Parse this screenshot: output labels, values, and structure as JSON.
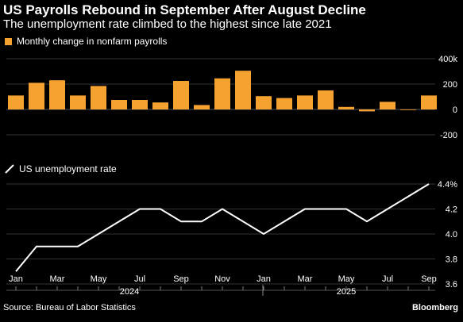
{
  "header": {
    "title": "US Payrolls Rebound in September After August Decline",
    "subtitle": "The unemployment rate climbed to the highest since late 2021"
  },
  "footer": {
    "source": "Source: Bureau of Labor Statistics",
    "brand": "Bloomberg"
  },
  "colors": {
    "bar": "#f5a231",
    "line": "#ffffff",
    "grid": "#333333",
    "background": "#000000"
  },
  "chart_data": [
    {
      "type": "bar",
      "legend": "Monthly change in nonfarm payrolls",
      "categories": [
        "2024-01",
        "2024-02",
        "2024-03",
        "2024-04",
        "2024-05",
        "2024-06",
        "2024-07",
        "2024-08",
        "2024-09",
        "2024-10",
        "2024-11",
        "2024-12",
        "2025-01",
        "2025-02",
        "2025-03",
        "2025-04",
        "2025-05",
        "2025-06",
        "2025-07",
        "2025-08",
        "2025-09"
      ],
      "values": [
        110,
        210,
        230,
        110,
        185,
        75,
        75,
        55,
        225,
        35,
        245,
        305,
        105,
        90,
        110,
        150,
        20,
        -15,
        60,
        -5,
        110
      ],
      "ylim": [
        -200,
        400
      ],
      "yticks": [
        400,
        200,
        0,
        -200
      ],
      "ytick_labels": [
        "400k",
        "200",
        "0",
        "-200"
      ],
      "grid": true
    },
    {
      "type": "line",
      "legend": "US unemployment rate",
      "categories": [
        "2024-01",
        "2024-02",
        "2024-03",
        "2024-04",
        "2024-05",
        "2024-06",
        "2024-07",
        "2024-08",
        "2024-09",
        "2024-10",
        "2024-11",
        "2024-12",
        "2025-01",
        "2025-02",
        "2025-03",
        "2025-04",
        "2025-05",
        "2025-06",
        "2025-07",
        "2025-08",
        "2025-09"
      ],
      "values": [
        3.7,
        3.9,
        3.9,
        3.9,
        4.0,
        4.1,
        4.2,
        4.2,
        4.1,
        4.1,
        4.2,
        4.1,
        4.0,
        4.1,
        4.2,
        4.2,
        4.2,
        4.1,
        4.2,
        4.3,
        4.4
      ],
      "ylim": [
        3.6,
        4.4
      ],
      "yticks": [
        4.4,
        4.2,
        4.0,
        3.8,
        3.6
      ],
      "ytick_labels": [
        "4.4%",
        "4.2",
        "4.0",
        "3.8",
        "3.6"
      ],
      "grid": true
    }
  ],
  "x_axis": {
    "tick_labels": [
      "Jan",
      "Mar",
      "May",
      "Jul",
      "Sep",
      "Nov",
      "Jan",
      "Mar",
      "May",
      "Jul",
      "Sep"
    ],
    "tick_indices": [
      0,
      2,
      4,
      6,
      8,
      10,
      12,
      14,
      16,
      18,
      20
    ],
    "years": [
      {
        "label": "2024",
        "center_index": 5.5
      },
      {
        "label": "2025",
        "center_index": 16
      }
    ],
    "year_divider_index": 12
  }
}
